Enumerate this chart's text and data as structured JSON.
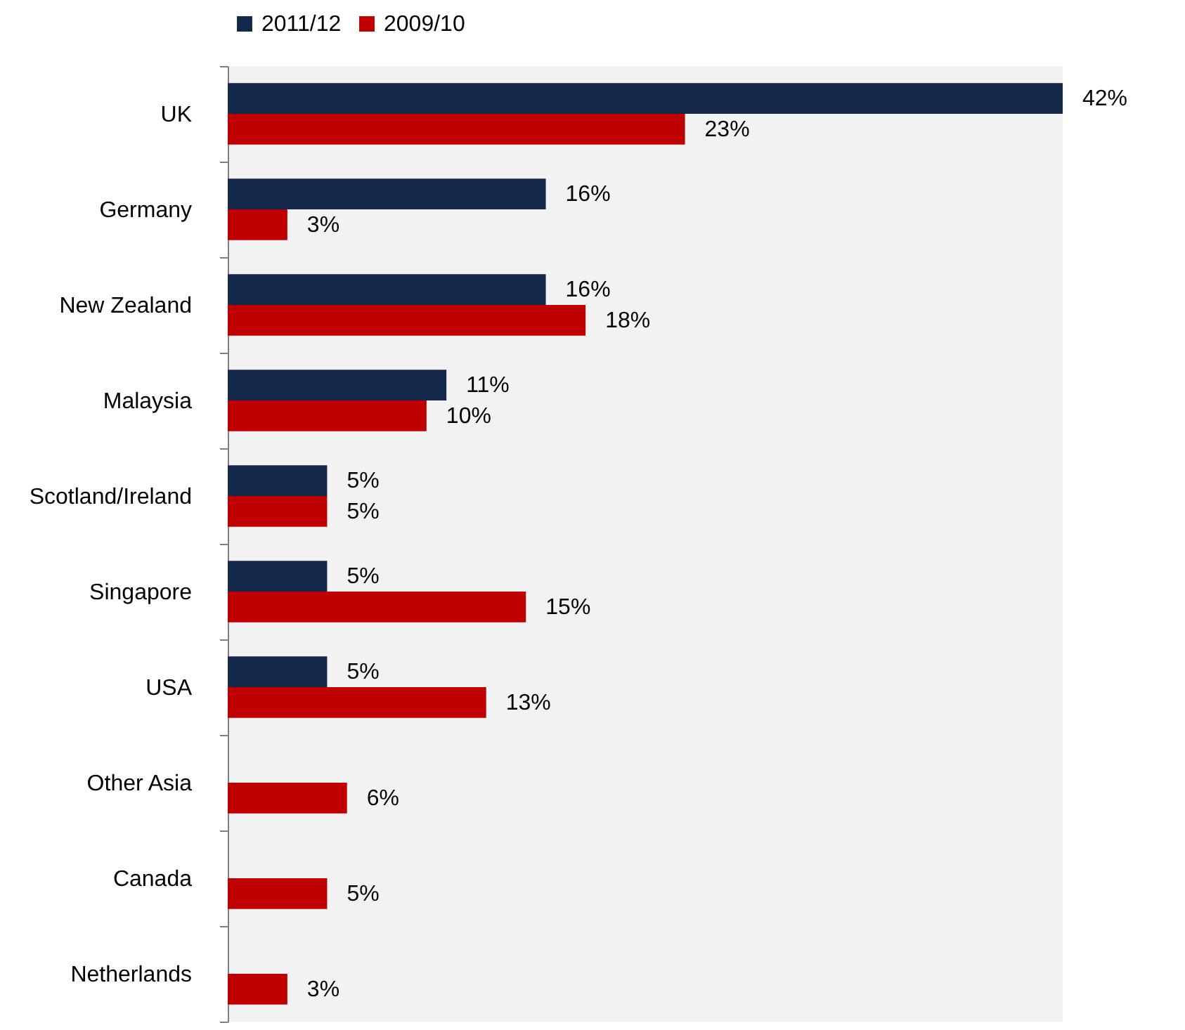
{
  "chart_data": {
    "type": "bar",
    "orientation": "horizontal",
    "categories": [
      "UK",
      "Germany",
      "New Zealand",
      "Malaysia",
      "Scotland/Ireland",
      "Singapore",
      "USA",
      "Other Asia",
      "Canada",
      "Netherlands"
    ],
    "series": [
      {
        "name": "2011/12",
        "color": "#13284b",
        "values": [
          42,
          16,
          16,
          11,
          5,
          5,
          5,
          null,
          null,
          null
        ],
        "value_labels": [
          "42%",
          "16%",
          "16%",
          "11%",
          "5%",
          "5%",
          "5%",
          null,
          null,
          null
        ]
      },
      {
        "name": "2009/10",
        "color": "#c00000",
        "values": [
          23,
          3,
          18,
          10,
          5,
          15,
          13,
          6,
          5,
          3
        ],
        "value_labels": [
          "23%",
          "3%",
          "18%",
          "10%",
          "5%",
          "15%",
          "13%",
          "6%",
          "5%",
          "3%"
        ]
      }
    ],
    "legend": "top"
  }
}
